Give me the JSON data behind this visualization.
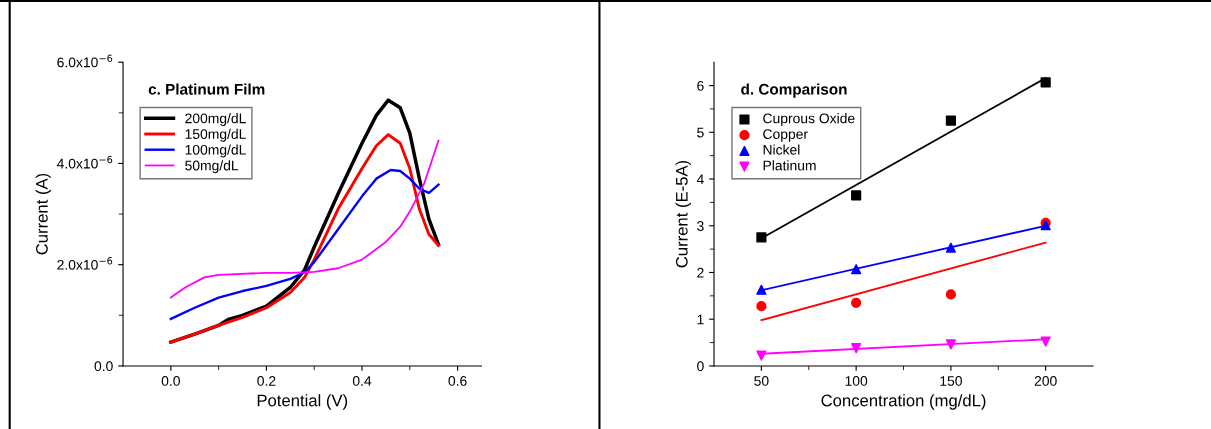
{
  "chart_data": [
    {
      "type": "line",
      "title": "c. Platinum Film",
      "xlabel": "Potential (V)",
      "ylabel": "Current (A)",
      "xlim": [
        -0.1,
        0.65
      ],
      "xticks": [
        {
          "value": 0,
          "label": "0.0"
        },
        0.2,
        0.4,
        0.6
      ],
      "ylim": [
        0,
        6e-06
      ],
      "yticks": [
        {
          "value": 0,
          "label": "0.0"
        },
        {
          "value": 2e-06,
          "label": "2.0x10$^{−6}$"
        },
        {
          "value": 4e-06,
          "label": "4.0x10$^{−6}$"
        },
        {
          "value": 6e-06,
          "label": "6.0x10$^{−6}$"
        }
      ],
      "legend": "top left",
      "grid": false,
      "series": [
        {
          "name": "200mg/dL",
          "color": "#000000",
          "x": [
            0.0,
            0.05,
            0.1,
            0.12,
            0.15,
            0.2,
            0.25,
            0.28,
            0.3,
            0.35,
            0.4,
            0.43,
            0.455,
            0.48,
            0.5,
            0.52,
            0.54,
            0.56
          ],
          "values": [
            4.7e-07,
            6.3e-07,
            8e-07,
            9.2e-07,
            1e-06,
            1.18e-06,
            1.55e-06,
            1.9e-06,
            2.35e-06,
            3.4e-06,
            4.4e-06,
            4.95e-06,
            5.25e-06,
            5.1e-06,
            4.6e-06,
            3.7e-06,
            2.9e-06,
            2.4e-06
          ]
        },
        {
          "name": "150mg/dL",
          "color": "#ff0000",
          "x": [
            0.0,
            0.05,
            0.1,
            0.15,
            0.2,
            0.25,
            0.28,
            0.3,
            0.35,
            0.4,
            0.43,
            0.455,
            0.48,
            0.5,
            0.52,
            0.54,
            0.56
          ],
          "values": [
            4.7e-07,
            6.3e-07,
            8e-07,
            9.6e-07,
            1.15e-06,
            1.45e-06,
            1.75e-06,
            2.1e-06,
            3.1e-06,
            3.9e-06,
            4.35e-06,
            4.57e-06,
            4.4e-06,
            3.9e-06,
            3.1e-06,
            2.6e-06,
            2.38e-06
          ]
        },
        {
          "name": "100mg/dL",
          "color": "#0000ff",
          "x": [
            0.0,
            0.05,
            0.1,
            0.15,
            0.2,
            0.25,
            0.28,
            0.3,
            0.35,
            0.4,
            0.43,
            0.46,
            0.48,
            0.5,
            0.52,
            0.54,
            0.56
          ],
          "values": [
            9.3e-07,
            1.15e-06,
            1.35e-06,
            1.48e-06,
            1.58e-06,
            1.72e-06,
            1.85e-06,
            2.05e-06,
            2.7e-06,
            3.35e-06,
            3.7e-06,
            3.87e-06,
            3.85e-06,
            3.7e-06,
            3.5e-06,
            3.42e-06,
            3.58e-06
          ]
        },
        {
          "name": "50mg/dL",
          "color": "#ff00ff",
          "x": [
            0.0,
            0.03,
            0.07,
            0.1,
            0.2,
            0.25,
            0.3,
            0.35,
            0.4,
            0.45,
            0.48,
            0.5,
            0.53,
            0.56
          ],
          "values": [
            1.35e-06,
            1.55e-06,
            1.75e-06,
            1.8e-06,
            1.84e-06,
            1.84e-06,
            1.86e-06,
            1.93e-06,
            2.1e-06,
            2.45e-06,
            2.75e-06,
            3.05e-06,
            3.6e-06,
            4.45e-06
          ]
        }
      ]
    },
    {
      "type": "scatter",
      "title": "d. Comparison",
      "xlabel": "Concentration (mg/dL)",
      "ylabel": "Current (E-5A)",
      "xlim": [
        25,
        225
      ],
      "xticks": [
        50,
        100,
        150,
        200
      ],
      "ylim": [
        0,
        6.5
      ],
      "yticks": [
        0,
        1,
        2,
        3,
        4,
        5,
        6
      ],
      "legend": "top left",
      "grid": false,
      "series": [
        {
          "name": "Cuprous Oxide",
          "color": "#000000",
          "marker": "square",
          "x": [
            50,
            100,
            150,
            200
          ],
          "values": [
            2.75,
            3.65,
            5.25,
            6.07
          ]
        },
        {
          "name": "Copper",
          "color": "#ff0000",
          "marker": "circle",
          "x": [
            50,
            100,
            150,
            200
          ],
          "values": [
            1.28,
            1.35,
            1.53,
            3.06
          ]
        },
        {
          "name": "Nickel",
          "color": "#0000ff",
          "marker": "triangle",
          "x": [
            50,
            100,
            150,
            200
          ],
          "values": [
            1.63,
            2.07,
            2.53,
            3.01
          ]
        },
        {
          "name": "Platinum",
          "color": "#ff00ff",
          "marker": "triangle_down",
          "x": [
            50,
            100,
            150,
            200
          ],
          "values": [
            0.22,
            0.38,
            0.46,
            0.52
          ]
        },
        {
          "type": "line",
          "color": "#000000",
          "x": [
            50,
            200
          ],
          "values": [
            2.73,
            6.16
          ]
        },
        {
          "type": "line",
          "color": "#ff0000",
          "x": [
            50,
            200
          ],
          "values": [
            0.98,
            2.64
          ]
        },
        {
          "type": "line",
          "color": "#0000ff",
          "x": [
            50,
            200
          ],
          "values": [
            1.62,
            3.0
          ]
        },
        {
          "type": "line",
          "color": "#ff00ff",
          "x": [
            50,
            200
          ],
          "values": [
            0.26,
            0.57
          ]
        }
      ]
    }
  ]
}
